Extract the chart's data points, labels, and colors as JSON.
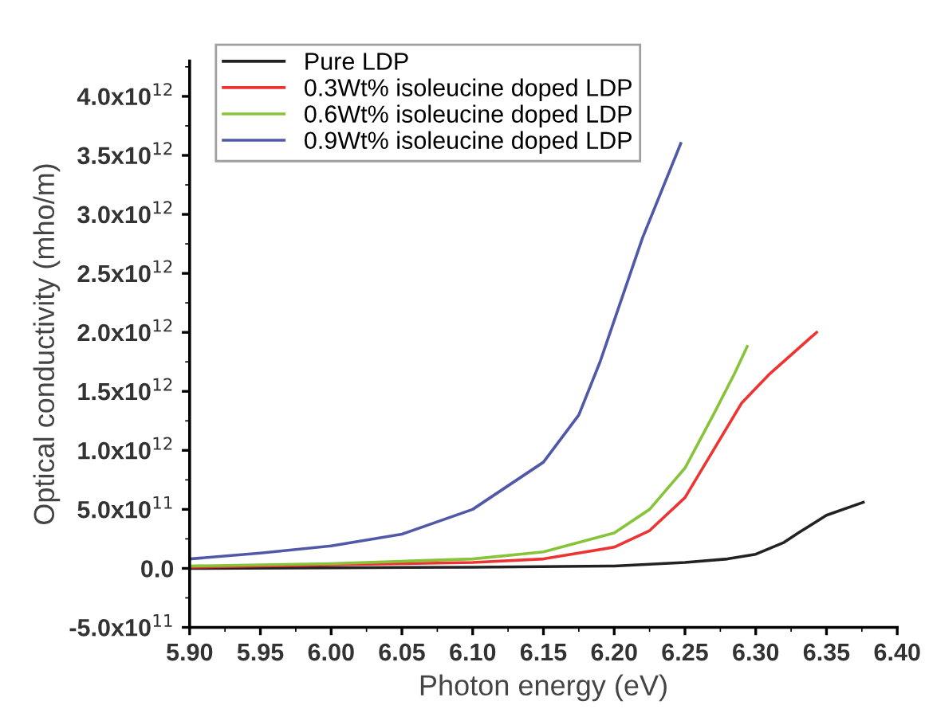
{
  "chart_data": {
    "type": "line",
    "xlabel": "Photon energy (eV)",
    "ylabel": "Optical conductivity (mho/m)",
    "xlim": [
      5.9,
      6.4
    ],
    "xticks": [
      {
        "value": 5.9,
        "label": "5.90"
      },
      {
        "value": 5.95,
        "label": "5.95"
      },
      {
        "value": 6.0,
        "label": "6.00"
      },
      {
        "value": 6.05,
        "label": "6.05"
      },
      {
        "value": 6.1,
        "label": "6.10"
      },
      {
        "value": 6.15,
        "label": "6.15"
      },
      {
        "value": 6.2,
        "label": "6.20"
      },
      {
        "value": 6.25,
        "label": "6.25"
      },
      {
        "value": 6.3,
        "label": "6.30"
      },
      {
        "value": 6.35,
        "label": "6.35"
      },
      {
        "value": 6.4,
        "label": "6.40"
      }
    ],
    "ylim": [
      -500000000000.0,
      4300000000000.0
    ],
    "yticks": [
      {
        "value": -500000000000.0,
        "label": "-5.0x10$^{11}$"
      },
      {
        "value": 0,
        "label": "0.0"
      },
      {
        "value": 500000000000.0,
        "label": "5.0x10$^{11}$"
      },
      {
        "value": 1000000000000.0,
        "label": "1.0x10$^{12}$"
      },
      {
        "value": 1500000000000.0,
        "label": "1.5x10$^{12}$"
      },
      {
        "value": 2000000000000.0,
        "label": "2.0x10$^{12}$"
      },
      {
        "value": 2500000000000.0,
        "label": "2.5x10$^{12}$"
      },
      {
        "value": 3000000000000.0,
        "label": "3.0x10$^{12}$"
      },
      {
        "value": 3500000000000.0,
        "label": "3.5x10$^{12}$"
      },
      {
        "value": 4000000000000.0,
        "label": "4.0x10$^{12}$"
      }
    ],
    "grid": false,
    "legend": "top left",
    "marker": "none",
    "line_style": "solid",
    "series": [
      {
        "name": "Pure LDP",
        "color": "#222222",
        "x": [
          5.9,
          6.0,
          6.1,
          6.2,
          6.25,
          6.28,
          6.3,
          6.32,
          6.33,
          6.35,
          6.376
        ],
        "values": [
          0,
          5000000000.0,
          10000000000.0,
          20000000000.0,
          50000000000.0,
          80000000000.0,
          120000000000.0,
          220000000000.0,
          300000000000.0,
          450000000000.0,
          560000000000.0
        ]
      },
      {
        "name": "0.3Wt% isoleucine doped LDP",
        "color": "#ee3333",
        "x": [
          5.9,
          6.0,
          6.1,
          6.15,
          6.2,
          6.225,
          6.25,
          6.27,
          6.29,
          6.31,
          6.343
        ],
        "values": [
          10000000000.0,
          30000000000.0,
          50000000000.0,
          80000000000.0,
          180000000000.0,
          320000000000.0,
          600000000000.0,
          1000000000000.0,
          1400000000000.0,
          1650000000000.0,
          2000000000000.0
        ]
      },
      {
        "name": "0.6Wt% isoleucine doped LDP",
        "color": "#88c43a",
        "x": [
          5.9,
          6.0,
          6.1,
          6.15,
          6.2,
          6.225,
          6.25,
          6.27,
          6.285,
          6.294
        ],
        "values": [
          20000000000.0,
          40000000000.0,
          80000000000.0,
          140000000000.0,
          300000000000.0,
          500000000000.0,
          850000000000.0,
          1300000000000.0,
          1650000000000.0,
          1880000000000.0
        ]
      },
      {
        "name": "0.9Wt% isoleucine doped LDP",
        "color": "#5058a8",
        "x": [
          5.9,
          5.95,
          6.0,
          6.05,
          6.1,
          6.15,
          6.175,
          6.19,
          6.2,
          6.22,
          6.247
        ],
        "values": [
          80000000000.0,
          130000000000.0,
          190000000000.0,
          290000000000.0,
          500000000000.0,
          900000000000.0,
          1300000000000.0,
          1750000000000.0,
          2100000000000.0,
          2800000000000.0,
          3600000000000.0
        ]
      }
    ]
  }
}
